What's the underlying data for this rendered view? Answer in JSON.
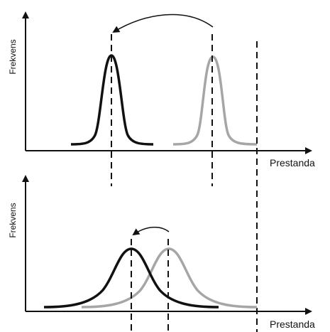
{
  "colors": {
    "current": "#111111",
    "previous": "#a6a6a6",
    "axis": "#111111"
  },
  "top_panel": {
    "y_label": "Frekvens",
    "x_label": "Prestanda"
  },
  "bottom_panel": {
    "y_label": "Frekvens",
    "x_label": "Prestanda"
  }
}
